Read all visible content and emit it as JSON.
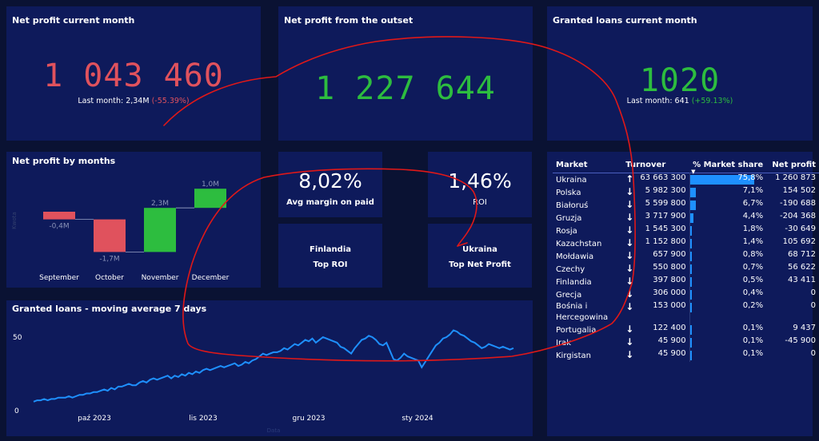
{
  "colors": {
    "page_bg": "#0a1233",
    "panel_bg": "#0e1a5b",
    "negative": "#e0525d",
    "positive": "#2dbd3f",
    "accent_bar": "#1e90ff",
    "annotation": "#e01818"
  },
  "kpi_net_profit_month": {
    "title": "Net profit current month",
    "value": "1 043 460",
    "last_label": "Last month: 2,34M",
    "change": "(-55.39%)"
  },
  "kpi_net_profit_outset": {
    "title": "Net profit from the outset",
    "value": "1 227 644"
  },
  "kpi_loans_month": {
    "title": "Granted loans current month",
    "value": "1020",
    "last_label": "Last month: 641",
    "change": "(+59.13%)"
  },
  "net_profit_by_months": {
    "title": "Net profit by months",
    "axis_label": "Kwota",
    "chart_data": {
      "type": "waterfall",
      "categories": [
        "September",
        "October",
        "November",
        "December"
      ],
      "values": [
        -0.4,
        -1.7,
        2.3,
        1.0
      ],
      "value_labels": [
        "-0,4M",
        "-1,7M",
        "2,3M",
        "1,0M"
      ],
      "unit": "M"
    }
  },
  "cards": {
    "avg_margin": {
      "value": "8,02%",
      "label": "Avg margin on paid"
    },
    "roi": {
      "value": "1,46%",
      "label": "ROI"
    },
    "top_roi": {
      "country": "Finlandia",
      "label": "Top ROI"
    },
    "top_net_profit": {
      "country": "Ukraina",
      "label": "Top Net Profit"
    }
  },
  "market_table": {
    "headers": {
      "market": "Market",
      "turnover": "Turnover",
      "share": "% Market share",
      "net_profit": "Net profit"
    },
    "rows": [
      {
        "market": "Ukraina",
        "trend": "up",
        "turnover": "63 663 300",
        "share_val": 75.8,
        "share": "75,8%",
        "net_profit": "1 260 873",
        "sign": "pos"
      },
      {
        "market": "Polska",
        "trend": "down",
        "turnover": "5 982 300",
        "share_val": 7.1,
        "share": "7,1%",
        "net_profit": "154 502",
        "sign": "pos"
      },
      {
        "market": "Białoruś",
        "trend": "down",
        "turnover": "5 599 800",
        "share_val": 6.7,
        "share": "6,7%",
        "net_profit": "-190 688",
        "sign": "neg"
      },
      {
        "market": "Gruzja",
        "trend": "down",
        "turnover": "3 717 900",
        "share_val": 4.4,
        "share": "4,4%",
        "net_profit": "-204 368",
        "sign": "neg"
      },
      {
        "market": "Rosja",
        "trend": "down",
        "turnover": "1 545 300",
        "share_val": 1.8,
        "share": "1,8%",
        "net_profit": "-30 649",
        "sign": "neg"
      },
      {
        "market": "Kazachstan",
        "trend": "down",
        "turnover": "1 152 800",
        "share_val": 1.4,
        "share": "1,4%",
        "net_profit": "105 692",
        "sign": "pos"
      },
      {
        "market": "Mołdawia",
        "trend": "down",
        "turnover": "657 900",
        "share_val": 0.8,
        "share": "0,8%",
        "net_profit": "68 712",
        "sign": "pos"
      },
      {
        "market": "Czechy",
        "trend": "down",
        "turnover": "550 800",
        "share_val": 0.7,
        "share": "0,7%",
        "net_profit": "56 622",
        "sign": "pos"
      },
      {
        "market": "Finlandia",
        "trend": "down",
        "turnover": "397 800",
        "share_val": 0.5,
        "share": "0,5%",
        "net_profit": "43 411",
        "sign": "pos"
      },
      {
        "market": "Grecja",
        "trend": "down",
        "turnover": "306 000",
        "share_val": 0.4,
        "share": "0,4%",
        "net_profit": "0",
        "sign": "zero"
      },
      {
        "market": "Bośnia i Hercegowina",
        "trend": "down",
        "turnover": "153 000",
        "share_val": 0.2,
        "share": "0,2%",
        "net_profit": "0",
        "sign": "zero"
      },
      {
        "market": "Portugalia",
        "trend": "down",
        "turnover": "122 400",
        "share_val": 0.1,
        "share": "0,1%",
        "net_profit": "9 437",
        "sign": "pos"
      },
      {
        "market": "Irak",
        "trend": "down",
        "turnover": "45 900",
        "share_val": 0.1,
        "share": "0,1%",
        "net_profit": "-45 900",
        "sign": "neg"
      },
      {
        "market": "Kirgistan",
        "trend": "down",
        "turnover": "45 900",
        "share_val": 0.1,
        "share": "0,1%",
        "net_profit": "0",
        "sign": "zero"
      }
    ]
  },
  "loans_chart": {
    "title": "Granted loans - moving average 7 days",
    "axis_label": "Data",
    "chart_data": {
      "type": "line",
      "ylim": [
        0,
        60
      ],
      "yticks": [
        "0",
        "50"
      ],
      "xticks": [
        "paź 2023",
        "lis 2023",
        "gru 2023",
        "sty 2024"
      ],
      "values": [
        3,
        4,
        4,
        5,
        4,
        5,
        5,
        6,
        6,
        6,
        7,
        6,
        7,
        8,
        8,
        9,
        9,
        10,
        10,
        11,
        12,
        11,
        13,
        12,
        14,
        14,
        15,
        16,
        15,
        15,
        17,
        18,
        17,
        19,
        20,
        19,
        20,
        21,
        22,
        20,
        22,
        21,
        23,
        22,
        24,
        23,
        25,
        24,
        26,
        27,
        26,
        27,
        28,
        29,
        28,
        29,
        30,
        31,
        29,
        30,
        32,
        31,
        33,
        34,
        36,
        38,
        37,
        38,
        39,
        39,
        40,
        42,
        41,
        43,
        45,
        44,
        46,
        48,
        47,
        49,
        46,
        48,
        50,
        49,
        48,
        47,
        46,
        43,
        42,
        40,
        38,
        42,
        45,
        48,
        49,
        51,
        50,
        48,
        45,
        44,
        46,
        40,
        34,
        33,
        35,
        38,
        36,
        35,
        34,
        33,
        28,
        32,
        36,
        40,
        44,
        46,
        49,
        50,
        52,
        55,
        54,
        52,
        51,
        49,
        47,
        46,
        44,
        42,
        43,
        45,
        44,
        43,
        42,
        43,
        42,
        41,
        42
      ]
    }
  }
}
